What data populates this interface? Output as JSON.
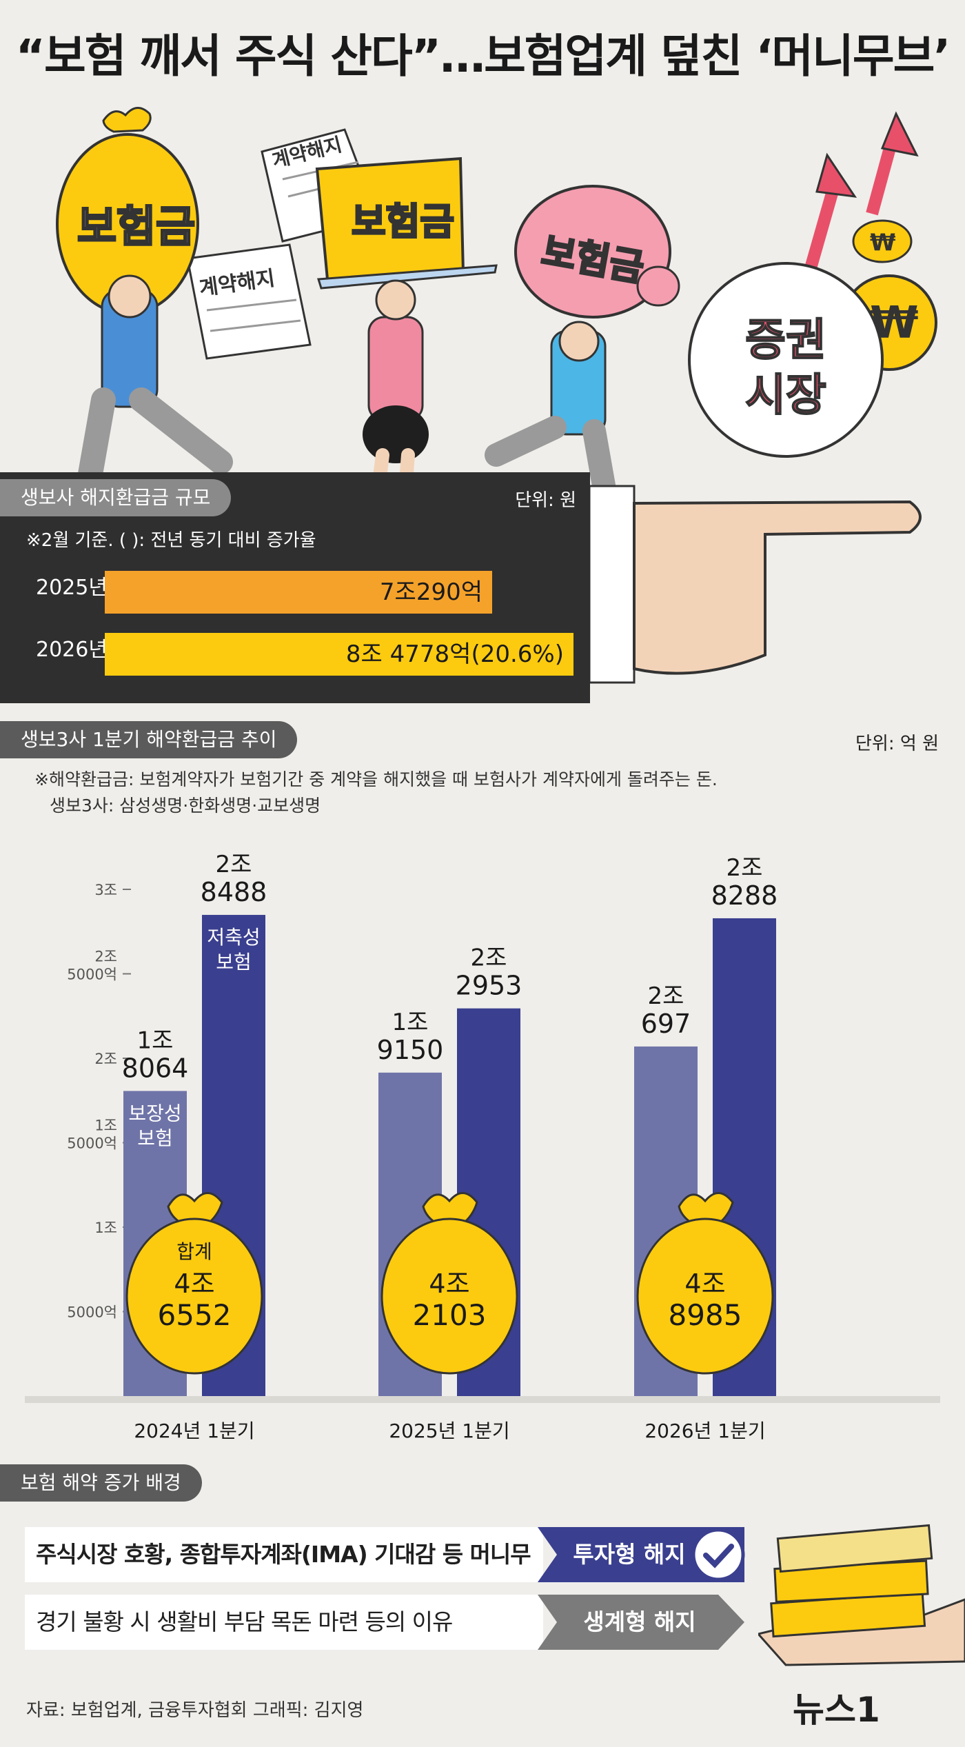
{
  "title": "“보험 깨서 주식 산다”…보험업계 덮친 ‘머니무브’",
  "illustration": {
    "bag_label": "보험금",
    "laptop_label": "보험금",
    "pig_label": "보험금",
    "paper1": "계약해지",
    "paper2": "계약해지",
    "circle_line1": "증권",
    "circle_line2": "시장",
    "coin_symbol": "₩"
  },
  "section1": {
    "tab": "생보사 해지환급금 규모",
    "unit": "단위: 원",
    "note": "※2월 기준. ( ): 전년 동기 대비 증가율",
    "bars": [
      {
        "year": "2025년",
        "value_label": "7조290억",
        "value": 70290,
        "color": "#f5a22a"
      },
      {
        "year": "2026년",
        "value_label": "8조 4778억(20.6%)",
        "value": 84778,
        "color": "#fccb0f"
      }
    ]
  },
  "section2": {
    "tab": "생보3사 1분기 해약환급금 추이",
    "unit": "단위: 억 원",
    "note_line1": "※해약환급금: 보험계약자가 보험기간 중 계약을 해지했을 때 보험사가 계약자에게 돌려주는 돈.",
    "note_line2": "생보3사: 삼성생명·한화생명·교보생명"
  },
  "chart_data": {
    "type": "bar",
    "categories": [
      "2024년 1분기",
      "2025년 1분기",
      "2026년 1분기"
    ],
    "series": [
      {
        "name": "보장성 보험",
        "values": [
          18064,
          19150,
          20697
        ],
        "labels": [
          "1조|8064",
          "1조|9150",
          "2조|697"
        ],
        "color": "#6f74a8"
      },
      {
        "name": "저축성 보험",
        "values": [
          28488,
          22953,
          28288
        ],
        "labels": [
          "2조|8488",
          "2조|2953",
          "2조|8288"
        ],
        "color": "#3a3f8f"
      }
    ],
    "totals": {
      "name": "합계",
      "values": [
        46552,
        42103,
        48985
      ],
      "labels": [
        "4조|6552",
        "4조|2103",
        "4조|8985"
      ]
    },
    "yticks": [
      {
        "value": 5000,
        "label": "5000억"
      },
      {
        "value": 10000,
        "label": "1조"
      },
      {
        "value": 15000,
        "label": "1조|5000억"
      },
      {
        "value": 20000,
        "label": "2조"
      },
      {
        "value": 25000,
        "label": "2조|5000억"
      },
      {
        "value": 30000,
        "label": "3조"
      }
    ],
    "ylim": [
      0,
      30000
    ],
    "series_label_1": "보장성|보험",
    "series_label_2": "저축성|보험"
  },
  "section3": {
    "tab": "보험 해약 증가 배경",
    "reasons": [
      {
        "text": "주식시장 호황, 종합투자계좌(IMA) 기대감 등 머니무브",
        "tag": "투자형 해지",
        "color": "#3a3f8f"
      },
      {
        "text": "경기 불황 시 생활비 부담 목돈 마련 등의 이유",
        "tag": "생계형 해지",
        "color": "#7b7b7b"
      }
    ]
  },
  "source": "자료: 보험업계, 금융투자협회   그래픽: 김지영",
  "logo": "뉴스1",
  "colors": {
    "background": "#efeeea",
    "gold": "#fccb0f",
    "navy": "#3a3f8f"
  }
}
